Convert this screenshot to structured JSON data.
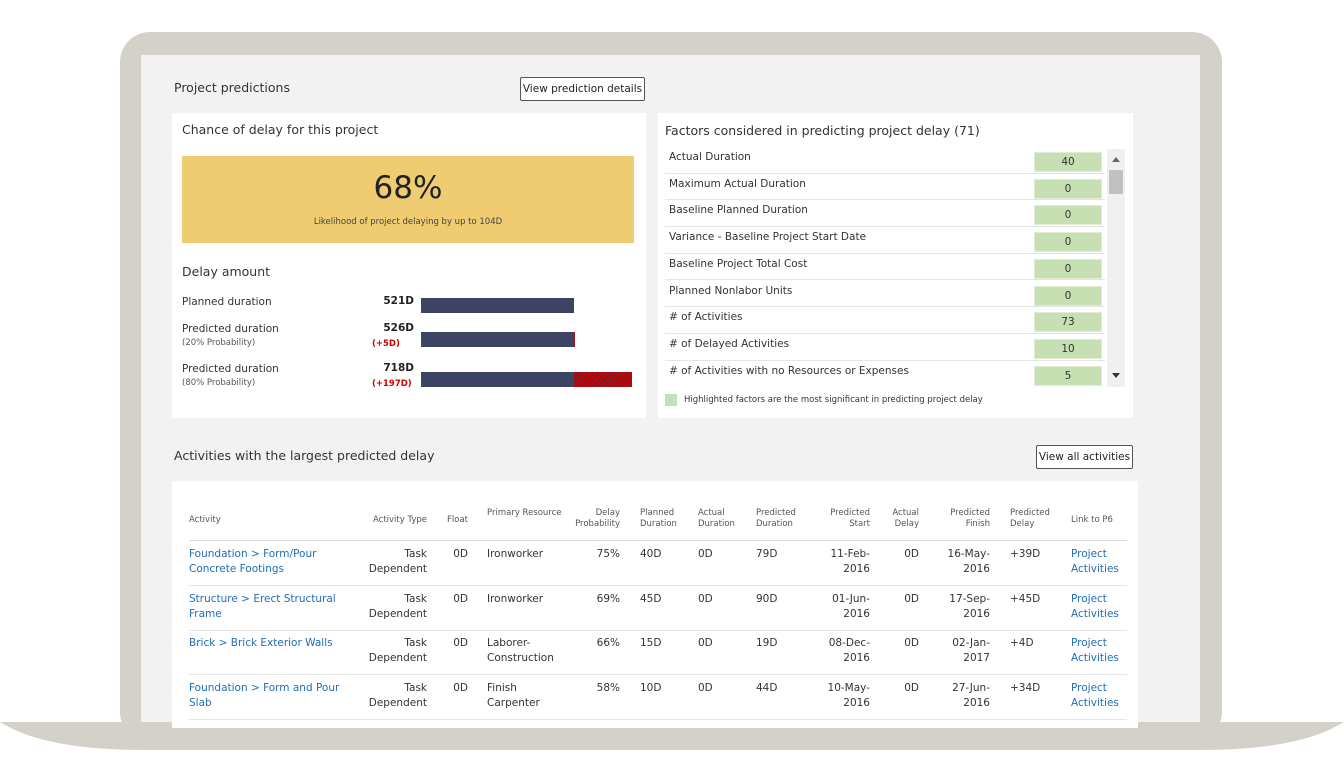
{
  "header": {
    "title": "Project predictions",
    "button": "View prediction details"
  },
  "chance": {
    "title": "Chance of delay for this project",
    "value": "68%",
    "caption": "Likelihood of project delaying by up to 104D"
  },
  "delay": {
    "title": "Delay amount",
    "rows": [
      {
        "label": "Planned duration",
        "value": 521,
        "value_label": "521D"
      },
      {
        "label": "Predicted duration",
        "note": "(20% Probability)",
        "value": 526,
        "value_label": "526D",
        "delta": 5,
        "delta_label": "(+5D)"
      },
      {
        "label": "Predicted duration",
        "note": "(80% Probability)",
        "value": 718,
        "value_label": "718D",
        "delta": 197,
        "delta_label": "(+197D)"
      }
    ]
  },
  "factors": {
    "title": "Factors considered in predicting project delay (71)",
    "rows": [
      {
        "name": "Actual Duration",
        "value": 40
      },
      {
        "name": "Maximum Actual Duration",
        "value": 0
      },
      {
        "name": "Baseline Planned Duration",
        "value": 0
      },
      {
        "name": "Variance - Baseline Project Start Date",
        "value": 0
      },
      {
        "name": "Baseline Project Total Cost",
        "value": 0
      },
      {
        "name": "Planned Nonlabor Units",
        "value": 0
      },
      {
        "name": "# of Activities",
        "value": 73
      },
      {
        "name": "# of Delayed Activities",
        "value": 10
      },
      {
        "name": "# of Activities with no Resources or Expenses",
        "value": 5
      }
    ],
    "note": "Highlighted factors are the most significant in predicting project delay"
  },
  "activities": {
    "title": "Activities with the largest predicted delay",
    "button": "View all activities",
    "columns": [
      "Activity",
      "Activity Type",
      "Float",
      "Primary Resource",
      "Delay Probability",
      "Planned Duration",
      "Actual Duration",
      "Predicted Duration",
      "Predicted Start",
      "Actual Delay",
      "Predicted Finish",
      "Predicted Delay",
      "Link to P6"
    ],
    "rows": [
      [
        "Foundation > Form/Pour Concrete Footings",
        "Task Dependent",
        "0D",
        "Ironworker",
        "75%",
        "40D",
        "0D",
        "79D",
        "11-Feb-2016",
        "0D",
        "16-May-2016",
        "+39D",
        "Project Activities"
      ],
      [
        "Structure > Erect Structural Frame",
        "Task Dependent",
        "0D",
        "Ironworker",
        "69%",
        "45D",
        "0D",
        "90D",
        "01-Jun-2016",
        "0D",
        "17-Sep-2016",
        "+45D",
        "Project Activities"
      ],
      [
        "Brick > Brick Exterior Walls",
        "Task Dependent",
        "0D",
        "Laborer-Construction",
        "66%",
        "15D",
        "0D",
        "19D",
        "08-Dec-2016",
        "0D",
        "02-Jan-2017",
        "+4D",
        "Project Activities"
      ],
      [
        "Foundation > Form and Pour Slab",
        "Task Dependent",
        "0D",
        "Finish Carpenter",
        "58%",
        "10D",
        "0D",
        "44D",
        "10-May-2016",
        "0D",
        "27-Jun-2016",
        "+34D",
        "Project Activities"
      ]
    ]
  }
}
